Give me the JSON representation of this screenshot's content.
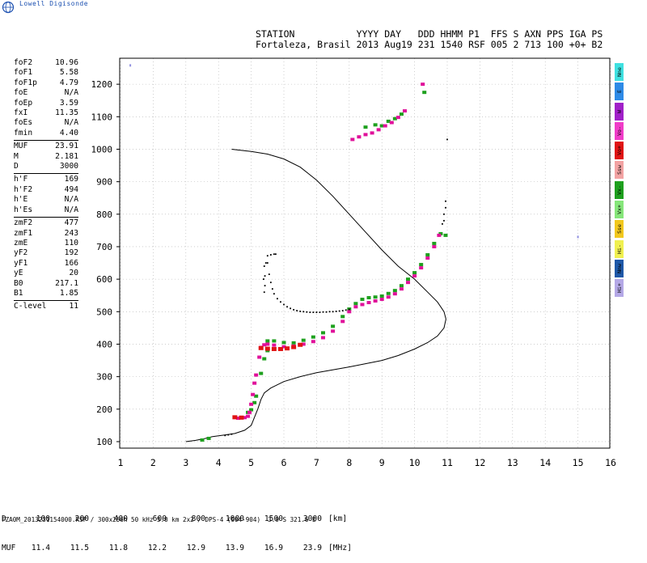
{
  "brand": "Lowell Digisonde",
  "header": {
    "line1": "STATION           YYYY DAY   DDD HHMM P1  FFS S AXN PPS IGA PS",
    "line2": "Fortaleza, Brasil 2013 Aug19 231 1540 RSF 005 2 713 100 +0+ B2"
  },
  "params": [
    {
      "k": "foF2",
      "v": "10.96"
    },
    {
      "k": "foF1",
      "v": "5.58"
    },
    {
      "k": "foF1p",
      "v": "4.79"
    },
    {
      "k": "foE",
      "v": "N/A"
    },
    {
      "k": "foEp",
      "v": "3.59"
    },
    {
      "k": "fxI",
      "v": "11.35"
    },
    {
      "k": "foEs",
      "v": "N/A"
    },
    {
      "k": "fmin",
      "v": "4.40"
    },
    {
      "sep": true
    },
    {
      "k": "MUF",
      "v": "23.91"
    },
    {
      "k": "M",
      "v": "2.181"
    },
    {
      "k": "D",
      "v": "3000"
    },
    {
      "sep": true
    },
    {
      "k": "h'F",
      "v": "169"
    },
    {
      "k": "h'F2",
      "v": "494"
    },
    {
      "k": "h'E",
      "v": "N/A"
    },
    {
      "k": "h'Es",
      "v": "N/A"
    },
    {
      "sep": true
    },
    {
      "k": "zmF2",
      "v": "477"
    },
    {
      "k": "zmF1",
      "v": "243"
    },
    {
      "k": "zmE",
      "v": "110"
    },
    {
      "k": "yF2",
      "v": "192"
    },
    {
      "k": "yF1",
      "v": "166"
    },
    {
      "k": "yE",
      "v": "20"
    },
    {
      "k": "B0",
      "v": "217.1"
    },
    {
      "k": "B1",
      "v": "1.85"
    },
    {
      "sep": true
    },
    {
      "k": "C-level",
      "v": "11"
    }
  ],
  "legend": [
    {
      "label": "Nne",
      "color": "#3ee0e0"
    },
    {
      "label": "E",
      "color": "#2e8ae6"
    },
    {
      "label": "W",
      "color": "#a020c8"
    },
    {
      "label": "Vo-",
      "color": "#f03cc8"
    },
    {
      "label": "Vo+",
      "color": "#e01414"
    },
    {
      "label": "Ssw",
      "color": "#f2a3a3"
    },
    {
      "label": "Vx-",
      "color": "#1ea01e"
    },
    {
      "label": "Vx+",
      "color": "#86e67a"
    },
    {
      "label": "Sse",
      "color": "#f2c81e"
    },
    {
      "label": "Hi-",
      "color": "#f0f050"
    },
    {
      "label": "Nnw",
      "color": "#1e58a8"
    },
    {
      "label": "Hi+",
      "color": "#b4a8e6"
    }
  ],
  "mufTable": {
    "d_label": "D",
    "d_values": [
      "100",
      "200",
      "400",
      "600",
      "800",
      "1000",
      "1500",
      "3000"
    ],
    "d_unit": "[km]",
    "muf_label": "MUF",
    "muf_values": [
      "11.4",
      "11.5",
      "11.8",
      "12.2",
      "12.9",
      "13.9",
      "16.9",
      "23.9"
    ],
    "muf_unit": "[MHz]"
  },
  "footer": "FZA0M_2013231154000.RSF / 300x256h 50 kHz 5.0 km 2x2 / DPS-4 (904-904)  3.9 S 321.6 E",
  "chart_data": {
    "type": "scatter",
    "xlim": [
      1,
      16
    ],
    "ylim": [
      80,
      1280
    ],
    "xticks": [
      1,
      2,
      3,
      4,
      5,
      6,
      7,
      8,
      9,
      10,
      11,
      12,
      13,
      14,
      15,
      16
    ],
    "yticks": [
      100,
      200,
      300,
      400,
      500,
      600,
      700,
      800,
      900,
      1000,
      1100,
      1200
    ],
    "grid": "dotted",
    "colors": {
      "ordinary": "#e0109a",
      "extraordinary": "#1ea01e",
      "low": "#e01414",
      "dots": "#000000",
      "profile": "#000000",
      "isolated": "#9090e0"
    },
    "profile": [
      [
        3.0,
        100
      ],
      [
        3.3,
        104
      ],
      [
        3.6,
        110
      ],
      [
        3.8,
        115
      ],
      [
        4.0,
        118
      ],
      [
        4.3,
        122
      ],
      [
        4.5,
        125
      ],
      [
        4.8,
        135
      ],
      [
        5.0,
        150
      ],
      [
        5.2,
        200
      ],
      [
        5.3,
        230
      ],
      [
        5.4,
        250
      ],
      [
        5.6,
        265
      ],
      [
        6.0,
        285
      ],
      [
        6.5,
        300
      ],
      [
        7.0,
        312
      ],
      [
        8.0,
        330
      ],
      [
        9.0,
        350
      ],
      [
        9.5,
        365
      ],
      [
        10.0,
        385
      ],
      [
        10.4,
        405
      ],
      [
        10.7,
        425
      ],
      [
        10.9,
        450
      ],
      [
        10.96,
        477
      ],
      [
        10.9,
        500
      ],
      [
        10.7,
        530
      ],
      [
        10.4,
        560
      ],
      [
        10.0,
        600
      ],
      [
        9.5,
        640
      ],
      [
        9.0,
        690
      ],
      [
        8.5,
        745
      ],
      [
        8.0,
        800
      ],
      [
        7.5,
        855
      ],
      [
        7.0,
        905
      ],
      [
        6.5,
        945
      ],
      [
        6.0,
        970
      ],
      [
        5.5,
        985
      ],
      [
        5.0,
        993
      ],
      [
        4.4,
        1000
      ]
    ],
    "dots": [
      [
        4.2,
        119
      ],
      [
        4.3,
        121
      ],
      [
        4.4,
        123
      ],
      [
        5.5,
        650
      ],
      [
        5.55,
        615
      ],
      [
        5.6,
        590
      ],
      [
        5.65,
        570
      ],
      [
        5.7,
        555
      ],
      [
        5.8,
        540
      ],
      [
        5.9,
        530
      ],
      [
        6.0,
        522
      ],
      [
        6.1,
        515
      ],
      [
        6.2,
        510
      ],
      [
        6.3,
        506
      ],
      [
        6.4,
        503
      ],
      [
        6.5,
        501
      ],
      [
        6.6,
        500
      ],
      [
        6.7,
        499
      ],
      [
        6.8,
        498
      ],
      [
        6.9,
        498
      ],
      [
        7.0,
        498
      ],
      [
        7.1,
        498
      ],
      [
        7.2,
        499
      ],
      [
        7.3,
        499
      ],
      [
        7.4,
        500
      ],
      [
        7.5,
        500
      ],
      [
        7.6,
        501
      ],
      [
        7.7,
        502
      ],
      [
        7.8,
        503
      ],
      [
        7.9,
        505
      ],
      [
        8.0,
        507
      ],
      [
        5.6,
        675
      ],
      [
        5.7,
        677
      ],
      [
        5.75,
        677
      ],
      [
        5.5,
        672
      ],
      [
        5.45,
        650
      ],
      [
        5.42,
        610
      ],
      [
        5.42,
        580
      ],
      [
        10.9,
        780
      ],
      [
        10.9,
        800
      ],
      [
        10.95,
        820
      ],
      [
        10.85,
        770
      ],
      [
        10.95,
        840
      ],
      [
        11.0,
        1030
      ],
      [
        5.4,
        560
      ],
      [
        5.38,
        600
      ],
      [
        5.4,
        640
      ]
    ],
    "ordinary": [
      [
        4.6,
        172
      ],
      [
        4.7,
        173
      ],
      [
        4.8,
        174
      ],
      [
        4.9,
        178
      ],
      [
        4.95,
        190
      ],
      [
        5.0,
        215
      ],
      [
        5.05,
        245
      ],
      [
        5.1,
        280
      ],
      [
        5.15,
        305
      ],
      [
        5.25,
        360
      ],
      [
        5.3,
        390
      ],
      [
        5.4,
        398
      ],
      [
        5.5,
        400
      ],
      [
        5.7,
        397
      ],
      [
        6.0,
        392
      ],
      [
        6.3,
        394
      ],
      [
        6.6,
        400
      ],
      [
        6.9,
        408
      ],
      [
        7.2,
        420
      ],
      [
        7.5,
        440
      ],
      [
        7.8,
        470
      ],
      [
        8.0,
        500
      ],
      [
        8.2,
        515
      ],
      [
        8.4,
        522
      ],
      [
        8.6,
        528
      ],
      [
        8.8,
        533
      ],
      [
        9.0,
        538
      ],
      [
        9.2,
        545
      ],
      [
        9.4,
        555
      ],
      [
        9.6,
        570
      ],
      [
        9.8,
        590
      ],
      [
        10.0,
        610
      ],
      [
        10.2,
        635
      ],
      [
        10.4,
        665
      ],
      [
        10.6,
        700
      ],
      [
        10.75,
        735
      ],
      [
        8.1,
        1030
      ],
      [
        8.3,
        1038
      ],
      [
        8.5,
        1045
      ],
      [
        8.7,
        1050
      ],
      [
        8.9,
        1060
      ],
      [
        9.1,
        1072
      ],
      [
        9.3,
        1082
      ],
      [
        9.5,
        1098
      ],
      [
        9.7,
        1118
      ],
      [
        10.25,
        1200
      ]
    ],
    "extraordinary": [
      [
        3.5,
        105
      ],
      [
        3.7,
        110
      ],
      [
        4.9,
        190
      ],
      [
        5.0,
        198
      ],
      [
        5.1,
        220
      ],
      [
        5.15,
        240
      ],
      [
        5.3,
        310
      ],
      [
        5.4,
        355
      ],
      [
        5.5,
        380
      ],
      [
        5.5,
        410
      ],
      [
        5.7,
        410
      ],
      [
        6.0,
        405
      ],
      [
        6.3,
        404
      ],
      [
        6.6,
        412
      ],
      [
        6.9,
        422
      ],
      [
        7.2,
        435
      ],
      [
        7.5,
        455
      ],
      [
        7.8,
        485
      ],
      [
        8.0,
        508
      ],
      [
        8.2,
        525
      ],
      [
        8.4,
        538
      ],
      [
        8.6,
        543
      ],
      [
        8.8,
        545
      ],
      [
        9.0,
        548
      ],
      [
        9.2,
        556
      ],
      [
        9.4,
        565
      ],
      [
        9.6,
        580
      ],
      [
        9.8,
        600
      ],
      [
        10.0,
        620
      ],
      [
        10.2,
        645
      ],
      [
        10.4,
        675
      ],
      [
        10.6,
        710
      ],
      [
        10.8,
        740
      ],
      [
        10.95,
        735
      ],
      [
        8.5,
        1068
      ],
      [
        8.8,
        1075
      ],
      [
        9.0,
        1072
      ],
      [
        9.2,
        1086
      ],
      [
        9.4,
        1094
      ],
      [
        9.6,
        1108
      ],
      [
        10.3,
        1175
      ]
    ],
    "low": [
      [
        4.5,
        175
      ],
      [
        4.7,
        174
      ],
      [
        5.3,
        388
      ],
      [
        5.5,
        386
      ],
      [
        5.7,
        385
      ],
      [
        5.9,
        385
      ],
      [
        6.1,
        387
      ],
      [
        6.3,
        391
      ],
      [
        6.5,
        398
      ]
    ],
    "isolated": [
      [
        1.3,
        1258
      ],
      [
        15.0,
        730
      ]
    ]
  }
}
